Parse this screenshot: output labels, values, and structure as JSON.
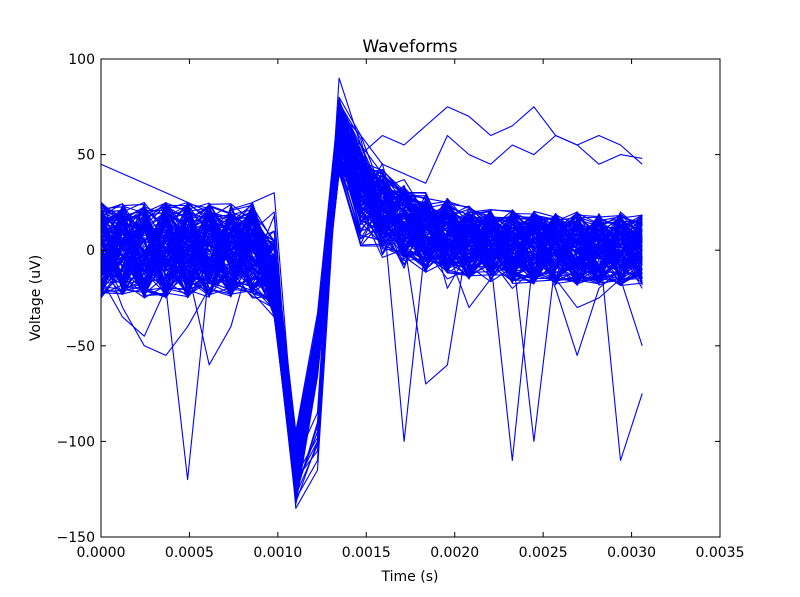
{
  "chart_data": {
    "type": "line",
    "title": "Waveforms",
    "xlabel": "Time (s)",
    "ylabel": "Voltage (uV)",
    "xlim": [
      0.0,
      0.0035
    ],
    "ylim": [
      -150,
      100
    ],
    "xticks": [
      "0.0000",
      "0.0005",
      "0.0010",
      "0.0015",
      "0.0020",
      "0.0025",
      "0.0030",
      "0.0035"
    ],
    "yticks": [
      "100",
      "50",
      "0",
      "−50",
      "−100",
      "−150"
    ],
    "grid": false,
    "legend": "none",
    "line_color": "#0000ff",
    "series_description": "Overlaid spike waveforms sampled from 0 to 0.00306 s; baseline near 0 uV, trough near 0.00082 s (about -125 uV), peak near 0.00110 s (about 65 uV)",
    "x_start": 0.0,
    "x_end": 0.00306,
    "representative_series": [
      {
        "values": [
          5,
          10,
          -5,
          15,
          20,
          0,
          12,
          -10,
          18,
          -125,
          -95,
          60,
          40,
          25,
          30,
          10,
          20,
          15,
          5,
          10,
          0,
          15,
          20,
          5,
          10,
          0
        ]
      },
      {
        "values": [
          -10,
          20,
          10,
          -5,
          25,
          15,
          -20,
          5,
          10,
          -132,
          -100,
          70,
          50,
          35,
          10,
          25,
          5,
          -5,
          15,
          10,
          -10,
          5,
          20,
          0,
          -10,
          5
        ]
      },
      {
        "values": [
          20,
          0,
          15,
          25,
          -5,
          10,
          20,
          15,
          -10,
          -128,
          -90,
          76,
          45,
          30,
          20,
          5,
          15,
          10,
          -5,
          20,
          10,
          0,
          -5,
          15,
          5,
          -15
        ]
      },
      {
        "values": [
          -25,
          -10,
          5,
          0,
          10,
          -5,
          15,
          20,
          5,
          -120,
          -105,
          65,
          55,
          40,
          25,
          15,
          10,
          -5,
          0,
          -10,
          5,
          15,
          10,
          -5,
          20,
          10
        ]
      },
      {
        "values": [
          45,
          40,
          35,
          30,
          25,
          20,
          15,
          10,
          5,
          -118,
          -98,
          72,
          60,
          45,
          40,
          35,
          60,
          50,
          45,
          55,
          50,
          60,
          55,
          45,
          50,
          48
        ]
      },
      {
        "values": [
          0,
          -30,
          -50,
          -55,
          -40,
          -20,
          -10,
          0,
          10,
          -130,
          -110,
          80,
          60,
          30,
          10,
          20,
          -20,
          0,
          10,
          5,
          -10,
          0,
          5,
          10,
          0,
          -20
        ]
      },
      {
        "values": [
          10,
          5,
          -15,
          -5,
          20,
          -10,
          0,
          5,
          -5,
          -125,
          -95,
          55,
          45,
          25,
          -100,
          5,
          0,
          10,
          -5,
          -110,
          0,
          10,
          5,
          -10,
          0,
          5
        ]
      },
      {
        "values": [
          -5,
          10,
          0,
          -20,
          -120,
          -10,
          15,
          10,
          0,
          -126,
          -92,
          58,
          35,
          15,
          5,
          -70,
          -60,
          10,
          5,
          0,
          -100,
          -5,
          10,
          5,
          -110,
          -75
        ]
      },
      {
        "values": [
          15,
          20,
          25,
          10,
          5,
          15,
          0,
          10,
          20,
          -122,
          -100,
          68,
          50,
          60,
          55,
          65,
          75,
          70,
          60,
          65,
          75,
          60,
          55,
          60,
          55,
          45
        ]
      },
      {
        "values": [
          -15,
          -35,
          -45,
          -20,
          -10,
          -60,
          -40,
          0,
          5,
          -135,
          -115,
          62,
          40,
          20,
          15,
          0,
          -15,
          -10,
          -5,
          -20,
          -10,
          -15,
          -30,
          -25,
          -15,
          -50
        ]
      },
      {
        "values": [
          25,
          15,
          10,
          20,
          5,
          -5,
          10,
          25,
          30,
          -110,
          -85,
          90,
          55,
          30,
          20,
          10,
          25,
          15,
          10,
          5,
          20,
          10,
          -5,
          0,
          15,
          5
        ]
      },
      {
        "values": [
          -20,
          5,
          -25,
          10,
          -15,
          0,
          -20,
          5,
          -15,
          -128,
          -102,
          64,
          42,
          22,
          12,
          -10,
          0,
          -30,
          -15,
          0,
          5,
          -20,
          -55,
          -20,
          -10,
          -15
        ]
      }
    ]
  }
}
